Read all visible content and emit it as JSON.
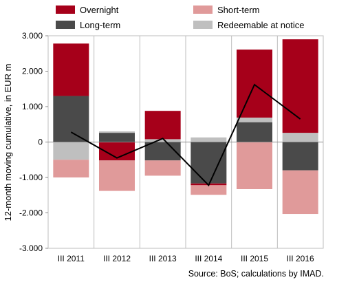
{
  "chart_data": {
    "type": "bar",
    "stacked": true,
    "categories": [
      "III 2011",
      "III 2012",
      "III 2013",
      "III 2014",
      "III 2015",
      "III 2016"
    ],
    "ylabel": "12-month moving cumulative, in EUR m",
    "ylim": [
      -3000,
      3000
    ],
    "yticks": [
      -3000,
      -2000,
      -1000,
      0,
      1000,
      2000,
      3000
    ],
    "ytick_labels": [
      "-3.000",
      "-2.000",
      "-1.000",
      "0",
      "1.000",
      "2.000",
      "3.000"
    ],
    "grid": "vertical separators between categories",
    "legend_position": "top",
    "series": [
      {
        "name": "Long-term",
        "color": "#4a4a4a",
        "values": [
          1300,
          260,
          -520,
          -1170,
          560,
          -800
        ]
      },
      {
        "name": "Redeemable at notice",
        "color": "#bfbfbf",
        "values": [
          -500,
          40,
          80,
          130,
          130,
          260
        ]
      },
      {
        "name": "Overnight",
        "color": "#a6001a",
        "values": [
          1480,
          -520,
          800,
          -50,
          1920,
          2640
        ]
      },
      {
        "name": "Short-term",
        "color": "#e09a9a",
        "values": [
          -500,
          -860,
          -430,
          -270,
          -1330,
          -1230
        ]
      }
    ],
    "line": {
      "color": "#000000",
      "values": [
        280,
        -450,
        100,
        -1220,
        1620,
        650
      ]
    }
  },
  "source": "Source: BoS; calculations by IMAD."
}
